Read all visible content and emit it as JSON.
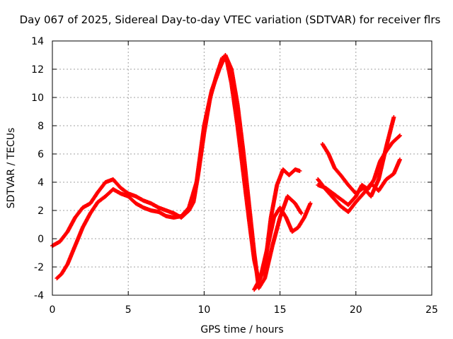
{
  "chart_data": {
    "type": "scatter",
    "title": "Day 067 of 2025, Sidereal Day-to-day VTEC variation (SDTVAR) for receiver flrs",
    "xlabel": "GPS time / hours",
    "ylabel": "SDTVAR / TECUs",
    "xlim": [
      0,
      25
    ],
    "ylim": [
      -4,
      14
    ],
    "xticks": [
      0,
      5,
      10,
      15,
      20,
      25
    ],
    "yticks": [
      -4,
      -2,
      0,
      2,
      4,
      6,
      8,
      10,
      12,
      14
    ],
    "grid": true,
    "marker": "+",
    "color": "#ff0000",
    "series": [
      {
        "x": [
          0.0,
          0.5,
          1.0,
          1.5,
          2.0,
          2.5,
          3.0,
          3.5,
          4.0,
          4.5,
          5.0,
          5.5,
          6.0,
          6.5,
          7.0,
          7.5,
          8.0,
          8.5,
          9.0,
          9.3,
          9.6,
          10.0,
          10.4,
          10.8,
          11.2,
          11.5,
          11.8,
          12.2,
          12.6,
          13.0,
          13.3,
          13.6,
          14.0,
          14.4,
          14.8,
          15.2,
          15.6,
          16.0,
          16.3
        ],
        "y": [
          -0.5,
          -0.2,
          0.5,
          1.5,
          2.2,
          2.5,
          3.3,
          4.0,
          4.2,
          3.6,
          3.2,
          3.0,
          2.7,
          2.5,
          2.2,
          2.0,
          1.8,
          1.5,
          2.0,
          2.6,
          4.5,
          7.5,
          10.0,
          11.5,
          12.8,
          12.6,
          11.0,
          8.0,
          4.5,
          1.0,
          -1.5,
          -3.0,
          -2.0,
          1.5,
          3.8,
          4.9,
          4.5,
          4.9,
          4.8
        ]
      },
      {
        "x": [
          0.3,
          0.6,
          1.0,
          1.5,
          2.0,
          2.5,
          3.0,
          3.5,
          4.0,
          4.5,
          5.0,
          5.5,
          6.0,
          6.5,
          7.0,
          7.5,
          8.0,
          8.5,
          9.0,
          9.5,
          10.0,
          10.5,
          11.0,
          11.4,
          11.8,
          12.2,
          12.6,
          13.0,
          13.3,
          13.6,
          14.0,
          14.5,
          15.0,
          15.5,
          16.0,
          16.4
        ],
        "y": [
          -2.8,
          -2.5,
          -1.8,
          -0.5,
          0.8,
          1.8,
          2.6,
          3.0,
          3.5,
          3.2,
          3.0,
          2.5,
          2.2,
          2.0,
          1.9,
          1.6,
          1.5,
          1.6,
          2.2,
          4.0,
          8.0,
          10.5,
          12.0,
          13.0,
          12.0,
          9.5,
          6.0,
          2.0,
          -1.0,
          -3.5,
          -2.8,
          -0.5,
          1.5,
          3.0,
          2.5,
          1.8
        ]
      },
      {
        "x": [
          13.3,
          13.7,
          14.2,
          14.6,
          15.0,
          15.4,
          15.8,
          16.2,
          16.6,
          17.0
        ],
        "y": [
          -3.6,
          -2.8,
          -0.5,
          1.5,
          2.2,
          1.5,
          0.5,
          0.8,
          1.5,
          2.5
        ]
      },
      {
        "x": [
          17.5,
          18.0,
          18.5,
          19.0,
          19.5,
          20.0,
          20.4,
          20.8,
          21.2,
          21.6,
          22.0,
          22.4,
          22.9
        ],
        "y": [
          3.8,
          3.6,
          3.2,
          2.8,
          2.4,
          3.0,
          3.8,
          3.5,
          4.2,
          5.5,
          6.2,
          6.8,
          7.3
        ]
      },
      {
        "x": [
          17.8,
          18.2,
          18.6,
          19.0,
          19.5,
          20.0,
          20.5,
          21.0,
          21.5,
          22.0,
          22.5
        ],
        "y": [
          6.7,
          6.0,
          5.0,
          4.5,
          3.8,
          3.2,
          3.6,
          3.0,
          4.2,
          6.5,
          8.6
        ]
      },
      {
        "x": [
          17.5,
          18.0,
          18.5,
          19.0,
          19.5,
          20.0,
          20.5,
          21.0,
          21.5,
          22.0,
          22.5,
          22.9
        ],
        "y": [
          4.2,
          3.5,
          2.9,
          2.3,
          1.9,
          2.6,
          3.2,
          3.9,
          3.4,
          4.2,
          4.6,
          5.6
        ]
      }
    ]
  }
}
